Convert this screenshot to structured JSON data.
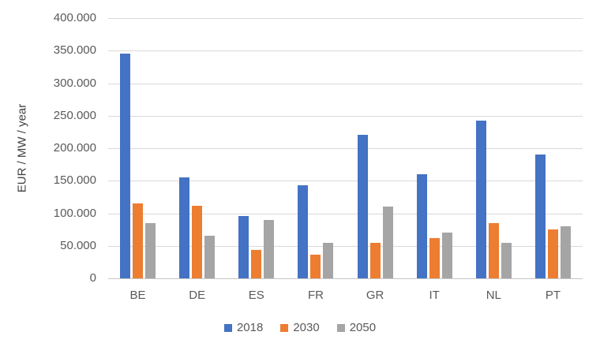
{
  "chart_data": {
    "type": "bar",
    "title": "",
    "xlabel": "",
    "ylabel": "EUR / MW / year",
    "categories": [
      "BE",
      "DE",
      "ES",
      "FR",
      "GR",
      "IT",
      "NL",
      "PT"
    ],
    "series": [
      {
        "name": "2018",
        "color": "#4472C4",
        "values": [
          345000,
          155000,
          96000,
          143000,
          220000,
          160000,
          242000,
          190000
        ]
      },
      {
        "name": "2030",
        "color": "#ED7D31",
        "values": [
          115000,
          112000,
          44000,
          36000,
          55000,
          62000,
          85000,
          75000
        ]
      },
      {
        "name": "2050",
        "color": "#A5A5A5",
        "values": [
          85000,
          65000,
          90000,
          55000,
          110000,
          70000,
          54000,
          80000
        ]
      }
    ],
    "ylim": [
      0,
      400000
    ],
    "ytick_step": 50000,
    "ytick_labels": [
      "0",
      "50.000",
      "100.000",
      "150.000",
      "200.000",
      "250.000",
      "300.000",
      "350.000",
      "400.000"
    ],
    "grid": true,
    "legend_position": "bottom",
    "colors": {
      "grid": "#D9D9D9",
      "axis": "#C6C6C6",
      "text": "#595959",
      "background": "#FFFFFF"
    }
  }
}
